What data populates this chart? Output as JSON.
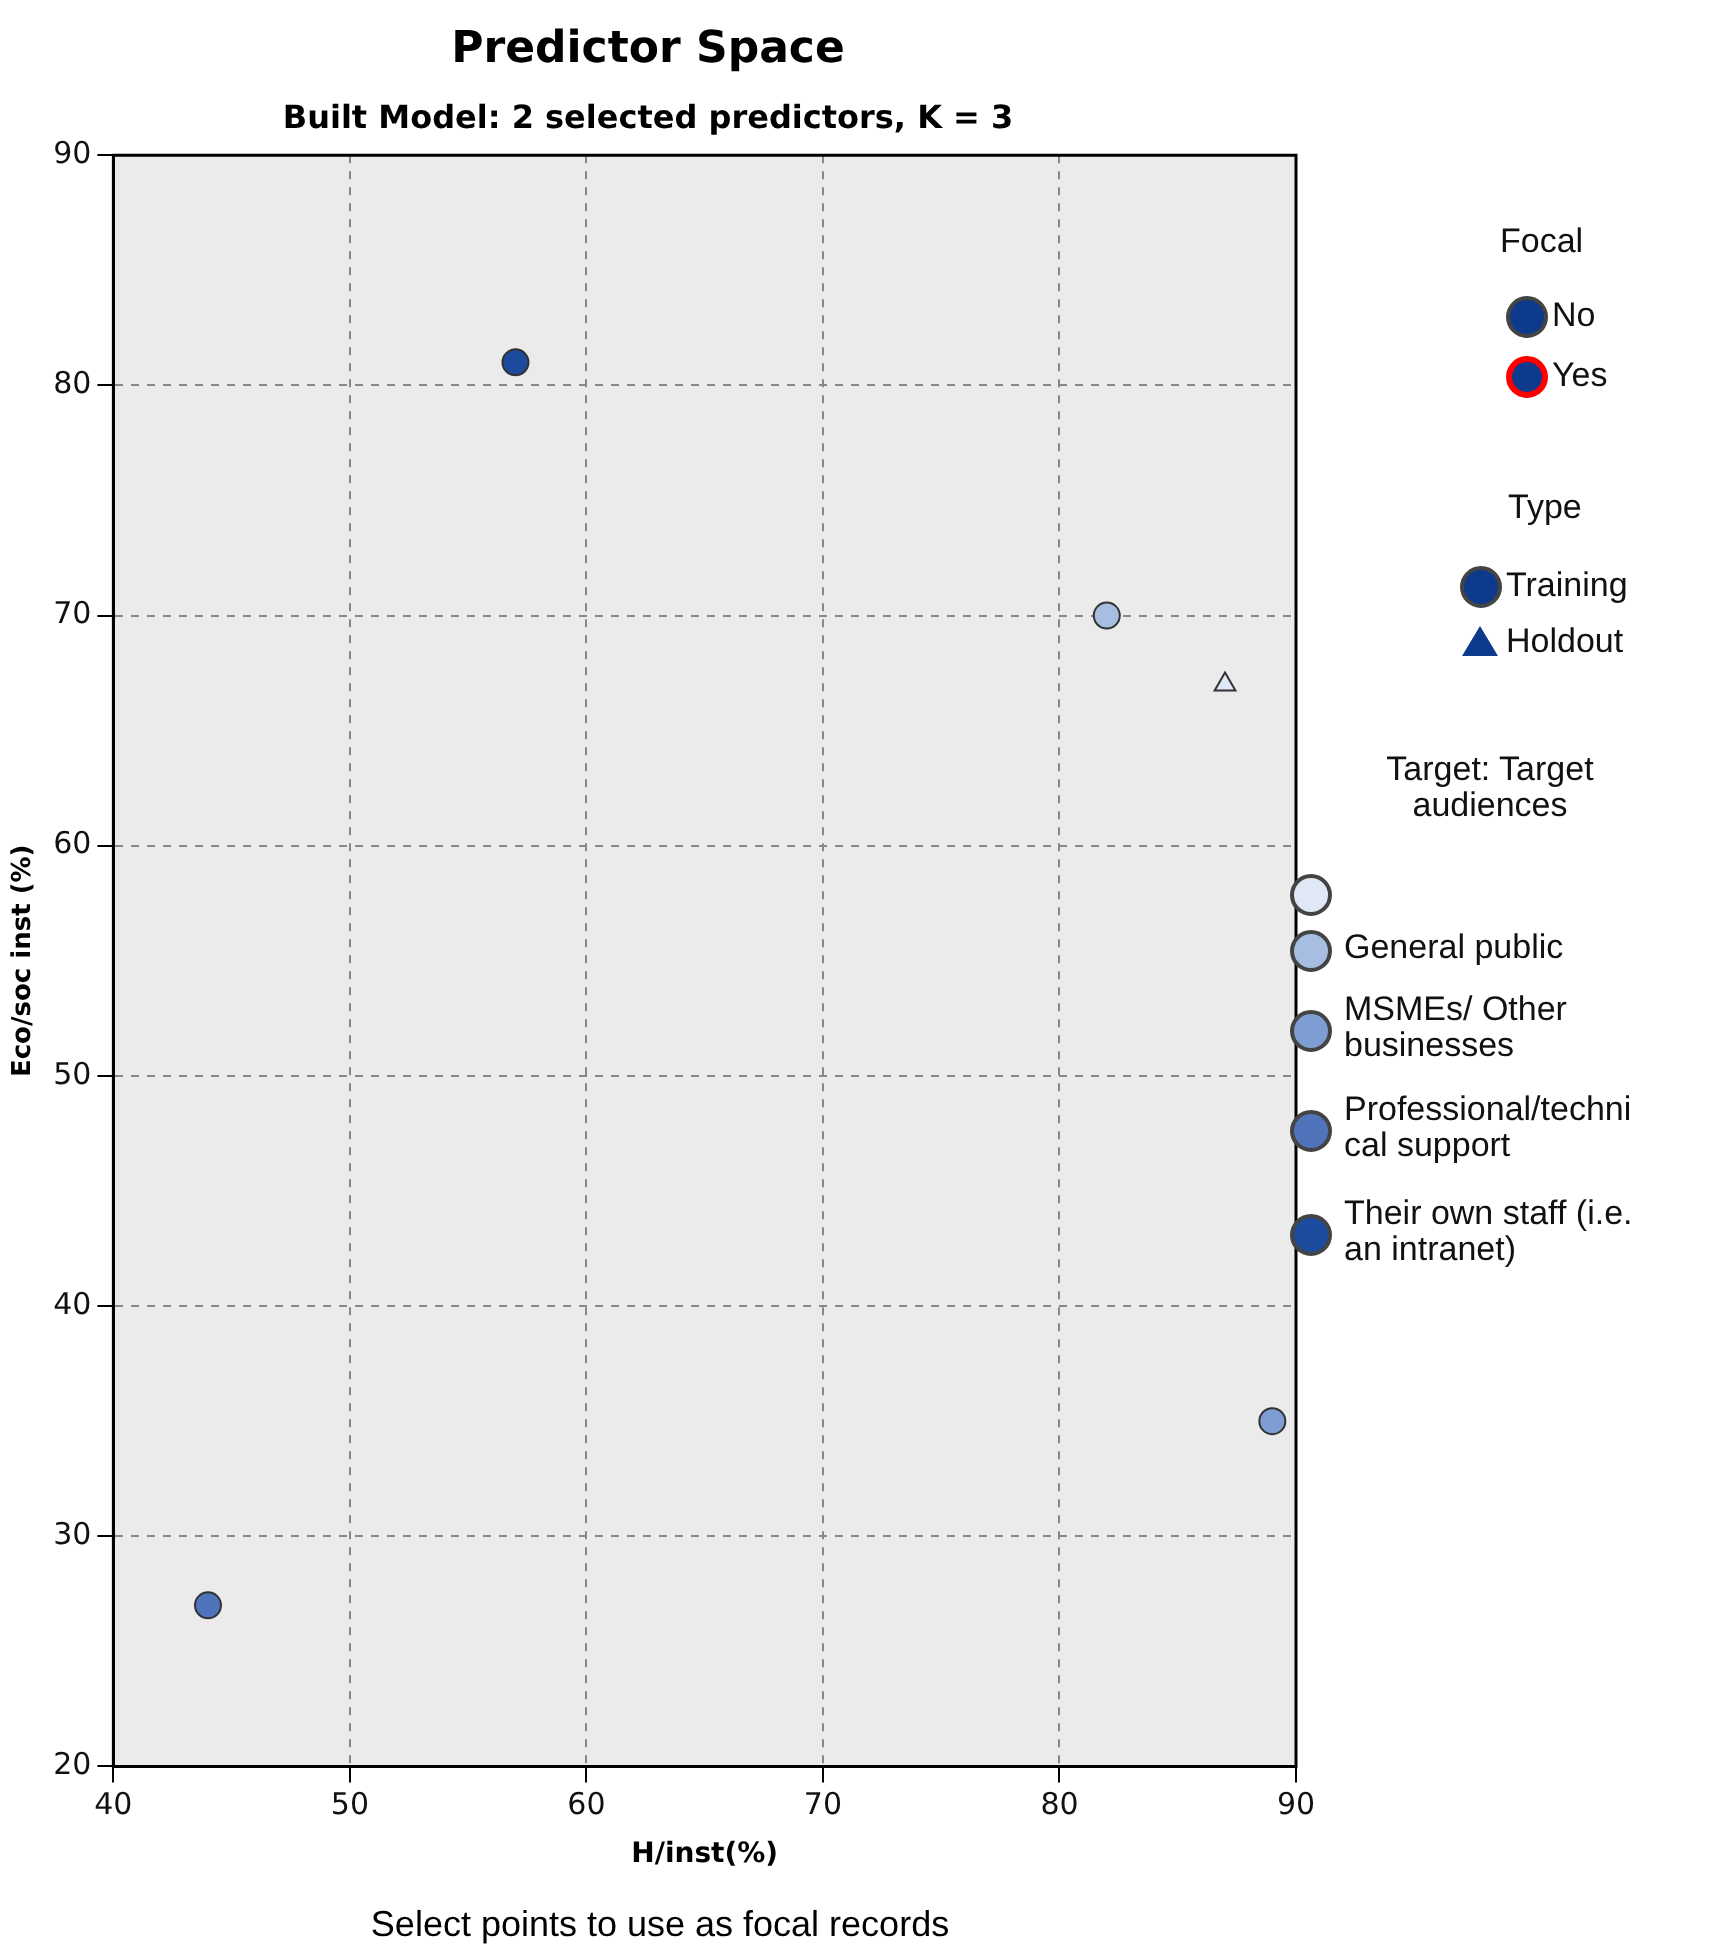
{
  "chart_data": {
    "type": "scatter",
    "title": "Predictor Space",
    "subtitle": "Built Model: 2 selected predictors, K = 3",
    "xlabel": "H/inst(%)",
    "ylabel": "Eco/soc inst (%)",
    "legend_title": "Target: Target audiences",
    "xlim": [
      40,
      90
    ],
    "xticks": [
      40,
      50,
      60,
      70,
      80,
      90
    ],
    "ylim": [
      20,
      90
    ],
    "yticks": [
      20,
      30,
      40,
      50,
      60,
      70,
      80,
      90
    ],
    "grid": true,
    "legend": "right",
    "marker": "circle",
    "series": [
      {
        "color": "#e1e8f5",
        "x": [
          87
        ],
        "values": [
          67
        ],
        "marker": "triangle"
      },
      {
        "name": "General public",
        "color": "#a8bde2",
        "x": [
          82
        ],
        "values": [
          70
        ]
      },
      {
        "name": "MSMEs/ Other businesses",
        "color": "#7e9dd2",
        "x": [
          89
        ],
        "values": [
          35
        ]
      },
      {
        "name": "Professional/technical support",
        "color": "#4f74bb",
        "x": [
          44
        ],
        "values": [
          27
        ]
      },
      {
        "name": "Their own staff (i.e. an intranet)",
        "color": "#1c4b9e",
        "x": [
          57
        ],
        "values": [
          81
        ]
      }
    ],
    "annotations": [
      "Focal",
      "No",
      "Yes",
      "Type",
      "Training",
      "Holdout",
      "Select points to use as focal records"
    ]
  }
}
